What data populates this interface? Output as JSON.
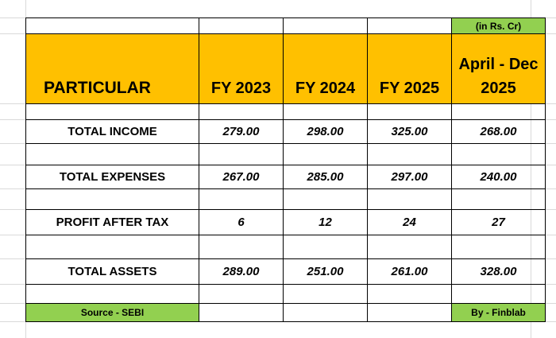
{
  "note": "(in Rs. Cr)",
  "table": {
    "header": [
      "PARTICULAR",
      "FY 2023",
      "FY 2024",
      "FY 2025",
      "April - Dec 2025"
    ],
    "rows": [
      [
        "TOTAL INCOME",
        "279.00",
        "298.00",
        "325.00",
        "268.00"
      ],
      [
        "TOTAL EXPENSES",
        "267.00",
        "285.00",
        "297.00",
        "240.00"
      ],
      [
        "PROFIT AFTER TAX",
        "6",
        "12",
        "24",
        "27"
      ],
      [
        "TOTAL ASSETS",
        "289.00",
        "251.00",
        "261.00",
        "328.00"
      ]
    ]
  },
  "footer": {
    "source": "Source - SEBI",
    "by": "By - Finblab"
  }
}
